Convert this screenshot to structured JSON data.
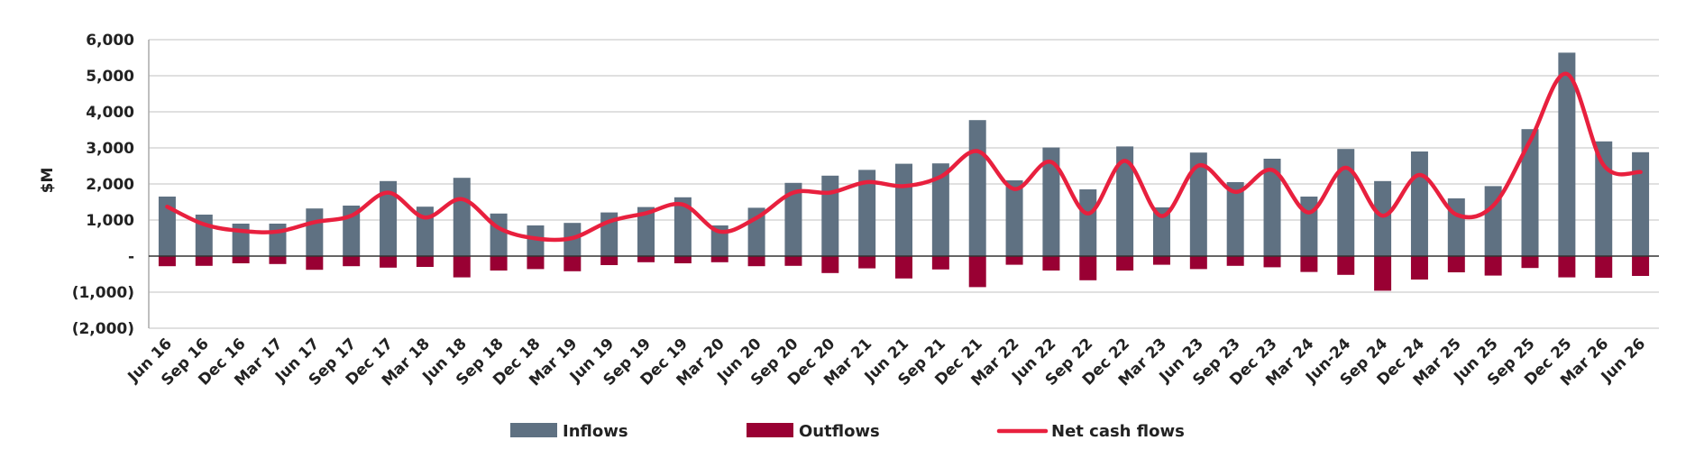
{
  "chart_data": {
    "type": "bar",
    "title": "",
    "xlabel": "",
    "ylabel": "$M",
    "ylim": [
      -2000,
      6000
    ],
    "y_ticks": [
      {
        "value": 6000,
        "label": "6,000"
      },
      {
        "value": 5000,
        "label": "5,000"
      },
      {
        "value": 4000,
        "label": "4,000"
      },
      {
        "value": 3000,
        "label": "3,000"
      },
      {
        "value": 2000,
        "label": "2,000"
      },
      {
        "value": 1000,
        "label": "1,000"
      },
      {
        "value": 0,
        "label": "-"
      },
      {
        "value": -1000,
        "label": "(1,000)"
      },
      {
        "value": -2000,
        "label": "(2,000)"
      }
    ],
    "grid": true,
    "legend_position": "bottom",
    "categories": [
      "Jun 16",
      "Sep 16",
      "Dec 16",
      "Mar 17",
      "Jun 17",
      "Sep 17",
      "Dec 17",
      "Mar 18",
      "Jun 18",
      "Sep 18",
      "Dec 18",
      "Mar 19",
      "Jun 19",
      "Sep 19",
      "Dec 19",
      "Mar 20",
      "Jun 20",
      "Sep 20",
      "Dec 20",
      "Mar 21",
      "Jun 21",
      "Sep 21",
      "Dec 21",
      "Mar 22",
      "Jun 22",
      "Sep 22",
      "Dec 22",
      "Mar 23",
      "Jun 23",
      "Sep 23",
      "Dec 23",
      "Mar 24",
      "Jun-24",
      "Sep 24",
      "Dec 24",
      "Mar 25",
      "Jun 25",
      "Sep 25",
      "Dec 25",
      "Mar 26",
      "Jun 26"
    ],
    "series": [
      {
        "name": "Inflows",
        "type": "bar",
        "color": "#5f7182",
        "values": [
          1650,
          1150,
          900,
          900,
          1320,
          1400,
          2080,
          1370,
          2170,
          1180,
          850,
          920,
          1210,
          1360,
          1630,
          850,
          1340,
          2030,
          2230,
          2390,
          2560,
          2570,
          3770,
          2100,
          3010,
          1850,
          3040,
          1350,
          2870,
          2050,
          2700,
          1650,
          2970,
          2080,
          2900,
          1600,
          1940,
          3520,
          5640,
          3180,
          2880
        ]
      },
      {
        "name": "Outflows",
        "type": "bar",
        "color": "#990033",
        "values": [
          -280,
          -270,
          -200,
          -220,
          -380,
          -280,
          -320,
          -300,
          -590,
          -400,
          -360,
          -420,
          -250,
          -170,
          -200,
          -170,
          -280,
          -270,
          -470,
          -340,
          -620,
          -370,
          -860,
          -240,
          -400,
          -670,
          -400,
          -240,
          -360,
          -270,
          -310,
          -440,
          -520,
          -960,
          -650,
          -450,
          -540,
          -330,
          -590,
          -600,
          -550
        ]
      },
      {
        "name": "Net cash flows",
        "type": "line",
        "color": "#e8203e",
        "values": [
          1370,
          880,
          700,
          680,
          940,
          1120,
          1760,
          1070,
          1580,
          780,
          490,
          500,
          960,
          1190,
          1430,
          680,
          1060,
          1760,
          1760,
          2050,
          1940,
          2200,
          2910,
          1860,
          2610,
          1180,
          2640,
          1110,
          2510,
          1780,
          2390,
          1210,
          2450,
          1120,
          2250,
          1150,
          1400,
          3190,
          5050,
          2520,
          2330
        ]
      }
    ]
  },
  "colors": {
    "inflows": "#5f7182",
    "outflows": "#990033",
    "net": "#e8203e",
    "grid": "#d6d6d6",
    "text": "#222222"
  }
}
